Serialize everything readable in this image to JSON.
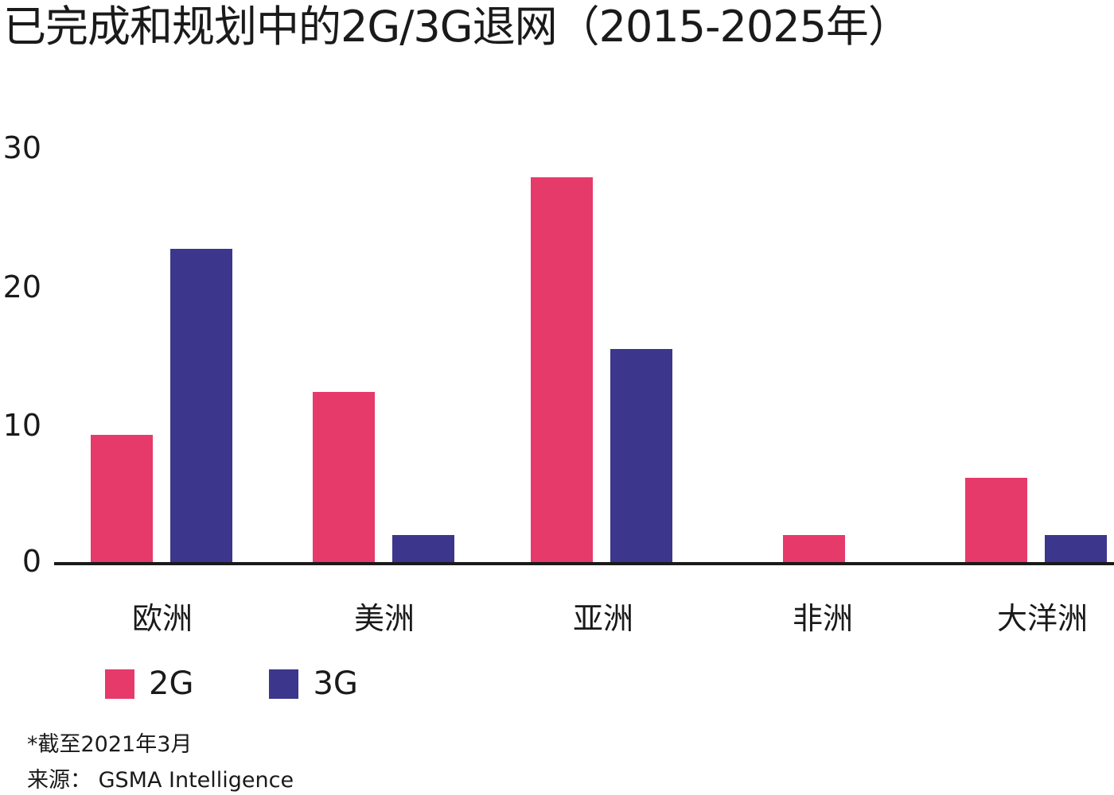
{
  "title": "已完成和规划中的2G/3G退网（2015-2025年）",
  "colors": {
    "2G": "#e63a6a",
    "3G": "#3c368c",
    "axis": "#1a1a1a"
  },
  "y_ticks": [
    "30",
    "20",
    "10",
    "0"
  ],
  "x_labels": [
    "欧洲",
    "美洲",
    "亚洲",
    "非洲",
    "大洋洲"
  ],
  "legend": [
    {
      "label": "2G"
    },
    {
      "label": "3G"
    }
  ],
  "footnote": "*截至2021年3月",
  "source": "来源： GSMA Intelligence",
  "chart_data": {
    "type": "bar",
    "title": "已完成和规划中的2G/3G退网（2015-2025年）",
    "categories": [
      "欧洲",
      "美洲",
      "亚洲",
      "非洲",
      "大洋洲"
    ],
    "series": [
      {
        "name": "2G",
        "color": "#e63a6a",
        "values": [
          9,
          12,
          27,
          2,
          6
        ]
      },
      {
        "name": "3G",
        "color": "#3c368c",
        "values": [
          22,
          2,
          15,
          0,
          2
        ]
      }
    ],
    "xlabel": "",
    "ylabel": "",
    "ylim": [
      0,
      30
    ],
    "yticks": [
      0,
      10,
      20,
      30
    ],
    "grid": false,
    "legend_position": "bottom-left",
    "annotations": [
      "*截至2021年3月",
      "来源： GSMA Intelligence"
    ]
  }
}
